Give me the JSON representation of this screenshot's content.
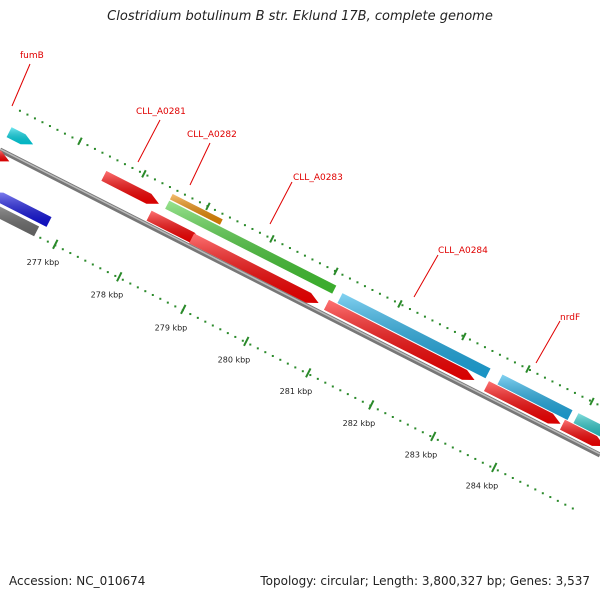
{
  "title": "Clostridium botulinum B str. Eklund 17B, complete genome",
  "accession_text": "Accession: NC_010674",
  "stats_text": "Topology: circular; Length: 3,800,327 bp; Genes: 3,537",
  "axis_ticks": [
    "277 kbp",
    "278 kbp",
    "279 kbp",
    "280 kbp",
    "281 kbp",
    "282 kbp",
    "283 kbp",
    "284 kbp"
  ],
  "gene_labels": [
    {
      "name": "fumB",
      "color": "#e00000"
    },
    {
      "name": "CLL_A0281",
      "color": "#e00000"
    },
    {
      "name": "CLL_A0282",
      "color": "#e00000"
    },
    {
      "name": "CLL_A0283",
      "color": "#e00000"
    },
    {
      "name": "CLL_A0284",
      "color": "#e00000"
    },
    {
      "name": "nrdF",
      "color": "#e00000"
    }
  ],
  "colors": {
    "cds": "#ff0000",
    "outer_cyan": "#00d8e8",
    "blue_gene": "#1010e0",
    "gray_gene": "#707070",
    "orange_gene": "#f08c00",
    "green_gene": "#44cc33",
    "light_blue_gene": "#1eaee8",
    "teal_gene": "#22c8c8",
    "backbone": "#999999",
    "tick_dots": "#2a8a2a"
  }
}
